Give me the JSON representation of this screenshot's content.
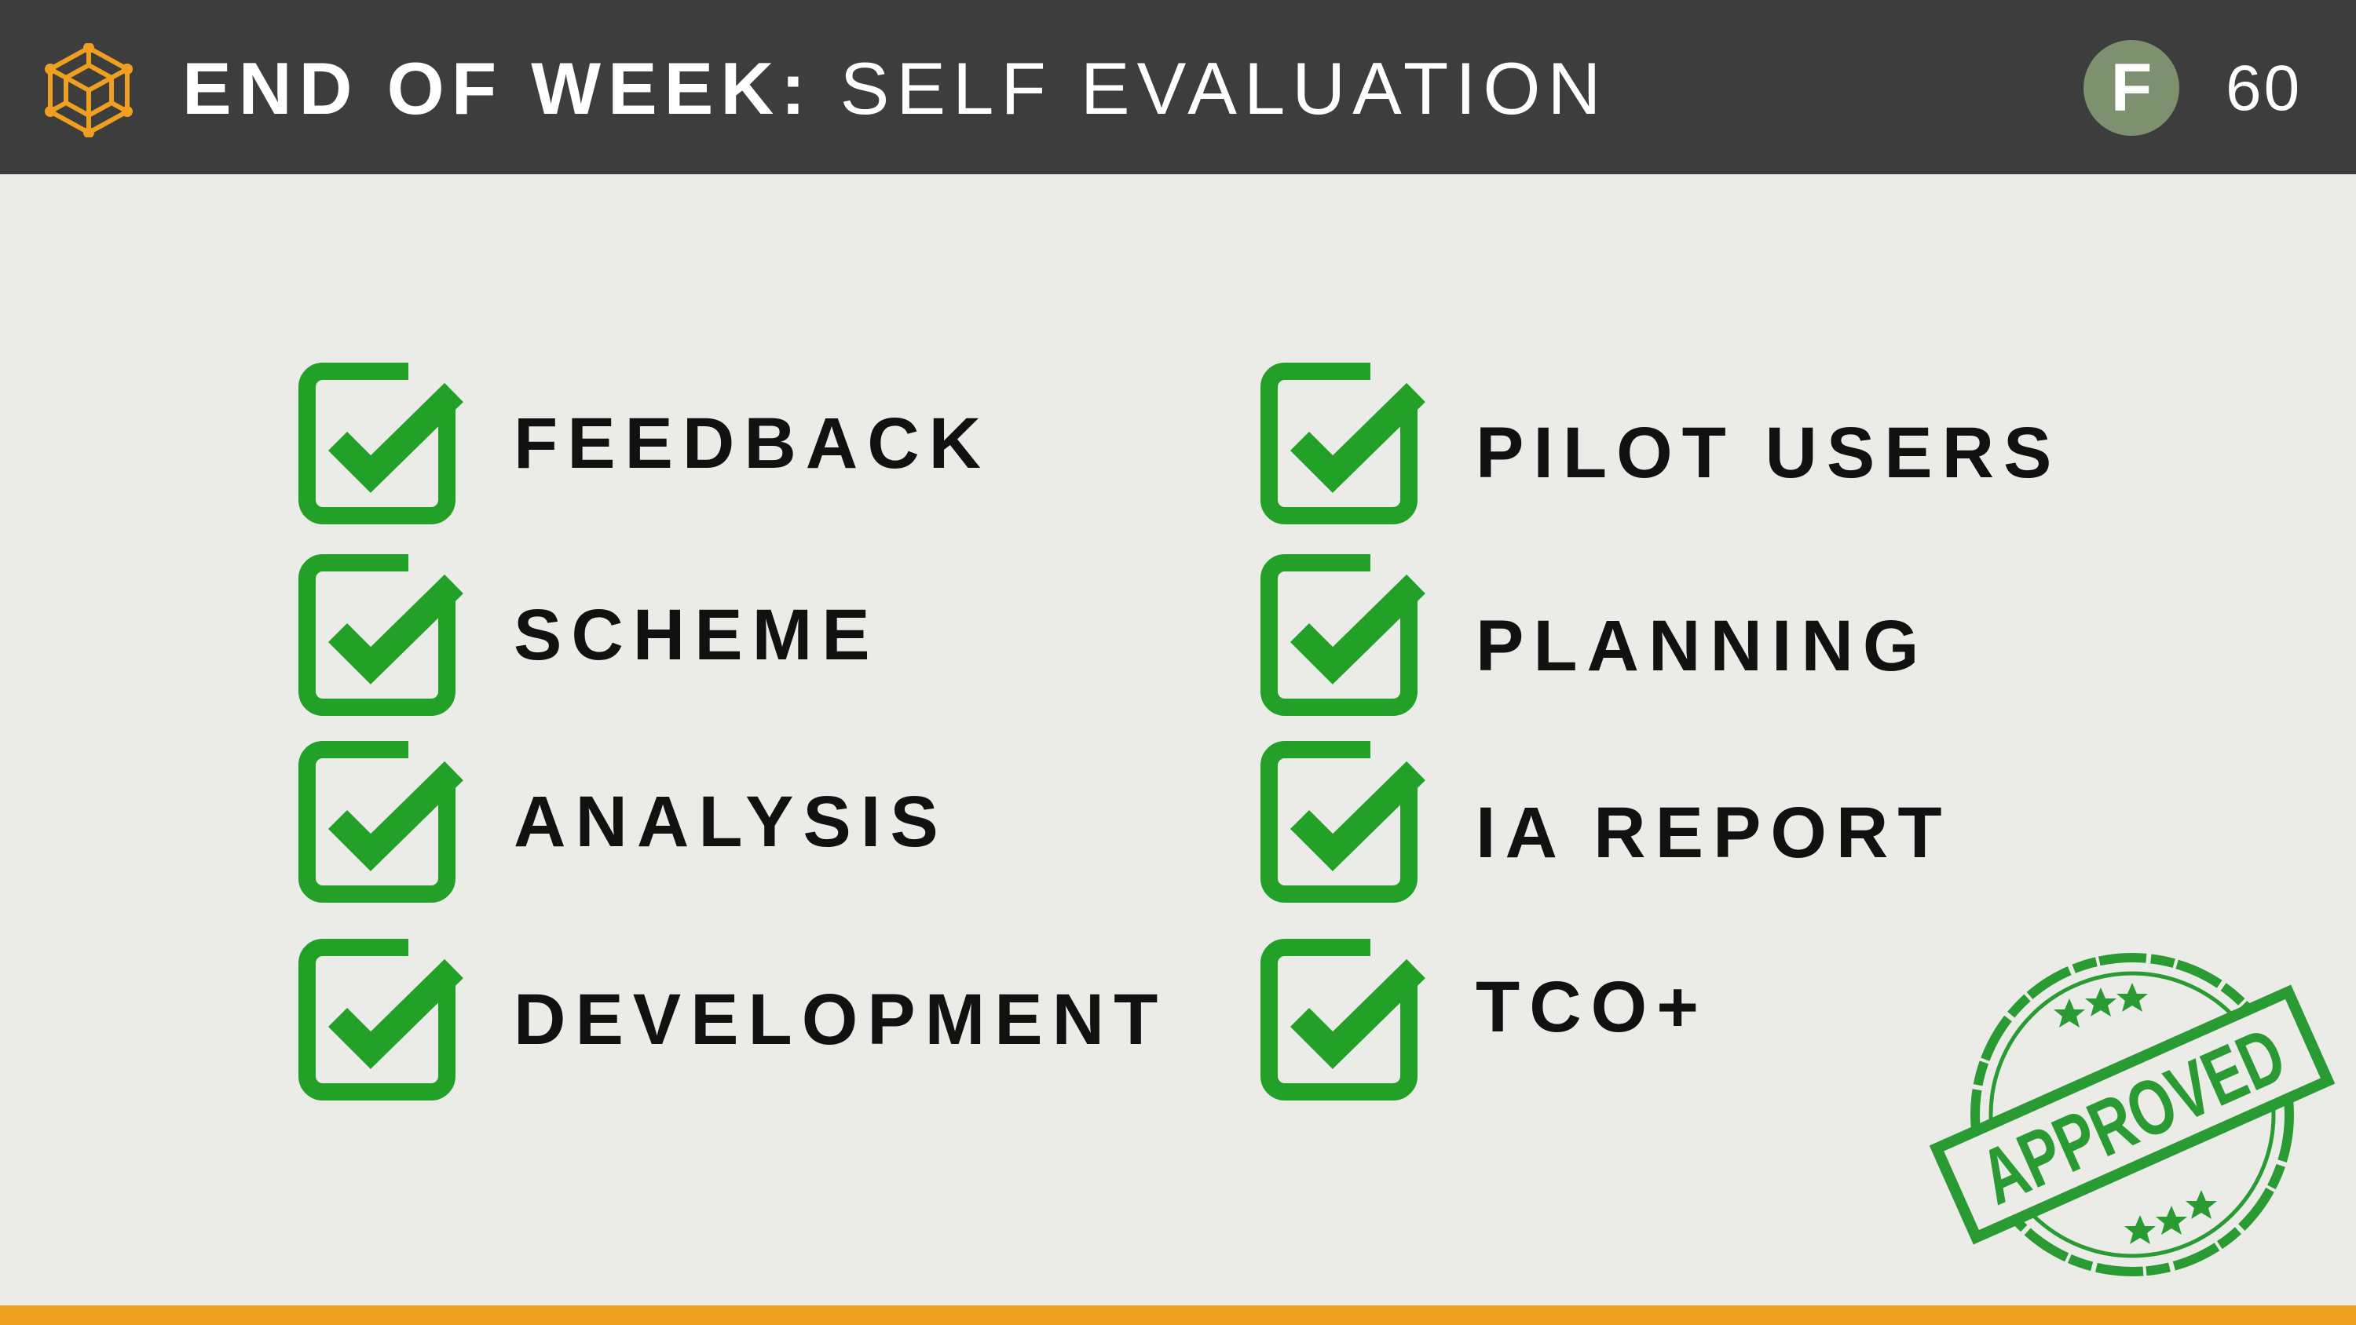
{
  "header": {
    "title_bold": "END OF WEEK:",
    "title_light": "SELF EVALUATION",
    "badge_letter": "F",
    "page_number": "60",
    "logo_icon": "hexagon-cube-icon",
    "background_color": "#3d3d3d"
  },
  "checklist": {
    "check_color": "#22a028",
    "left_column": [
      {
        "label": "FEEDBACK",
        "checked": true
      },
      {
        "label": "SCHEME",
        "checked": true
      },
      {
        "label": "ANALYSIS",
        "checked": true
      },
      {
        "label": "DEVELOPMENT",
        "checked": true
      }
    ],
    "right_column": [
      {
        "label": "PILOT USERS",
        "checked": true
      },
      {
        "label": "PLANNING",
        "checked": true
      },
      {
        "label": "IA REPORT",
        "checked": true
      },
      {
        "label": "TCO+",
        "checked": true
      }
    ]
  },
  "stamp": {
    "text": "APPROVED",
    "color": "#2a9a32"
  },
  "footer": {
    "accent_color": "#f0a020"
  }
}
